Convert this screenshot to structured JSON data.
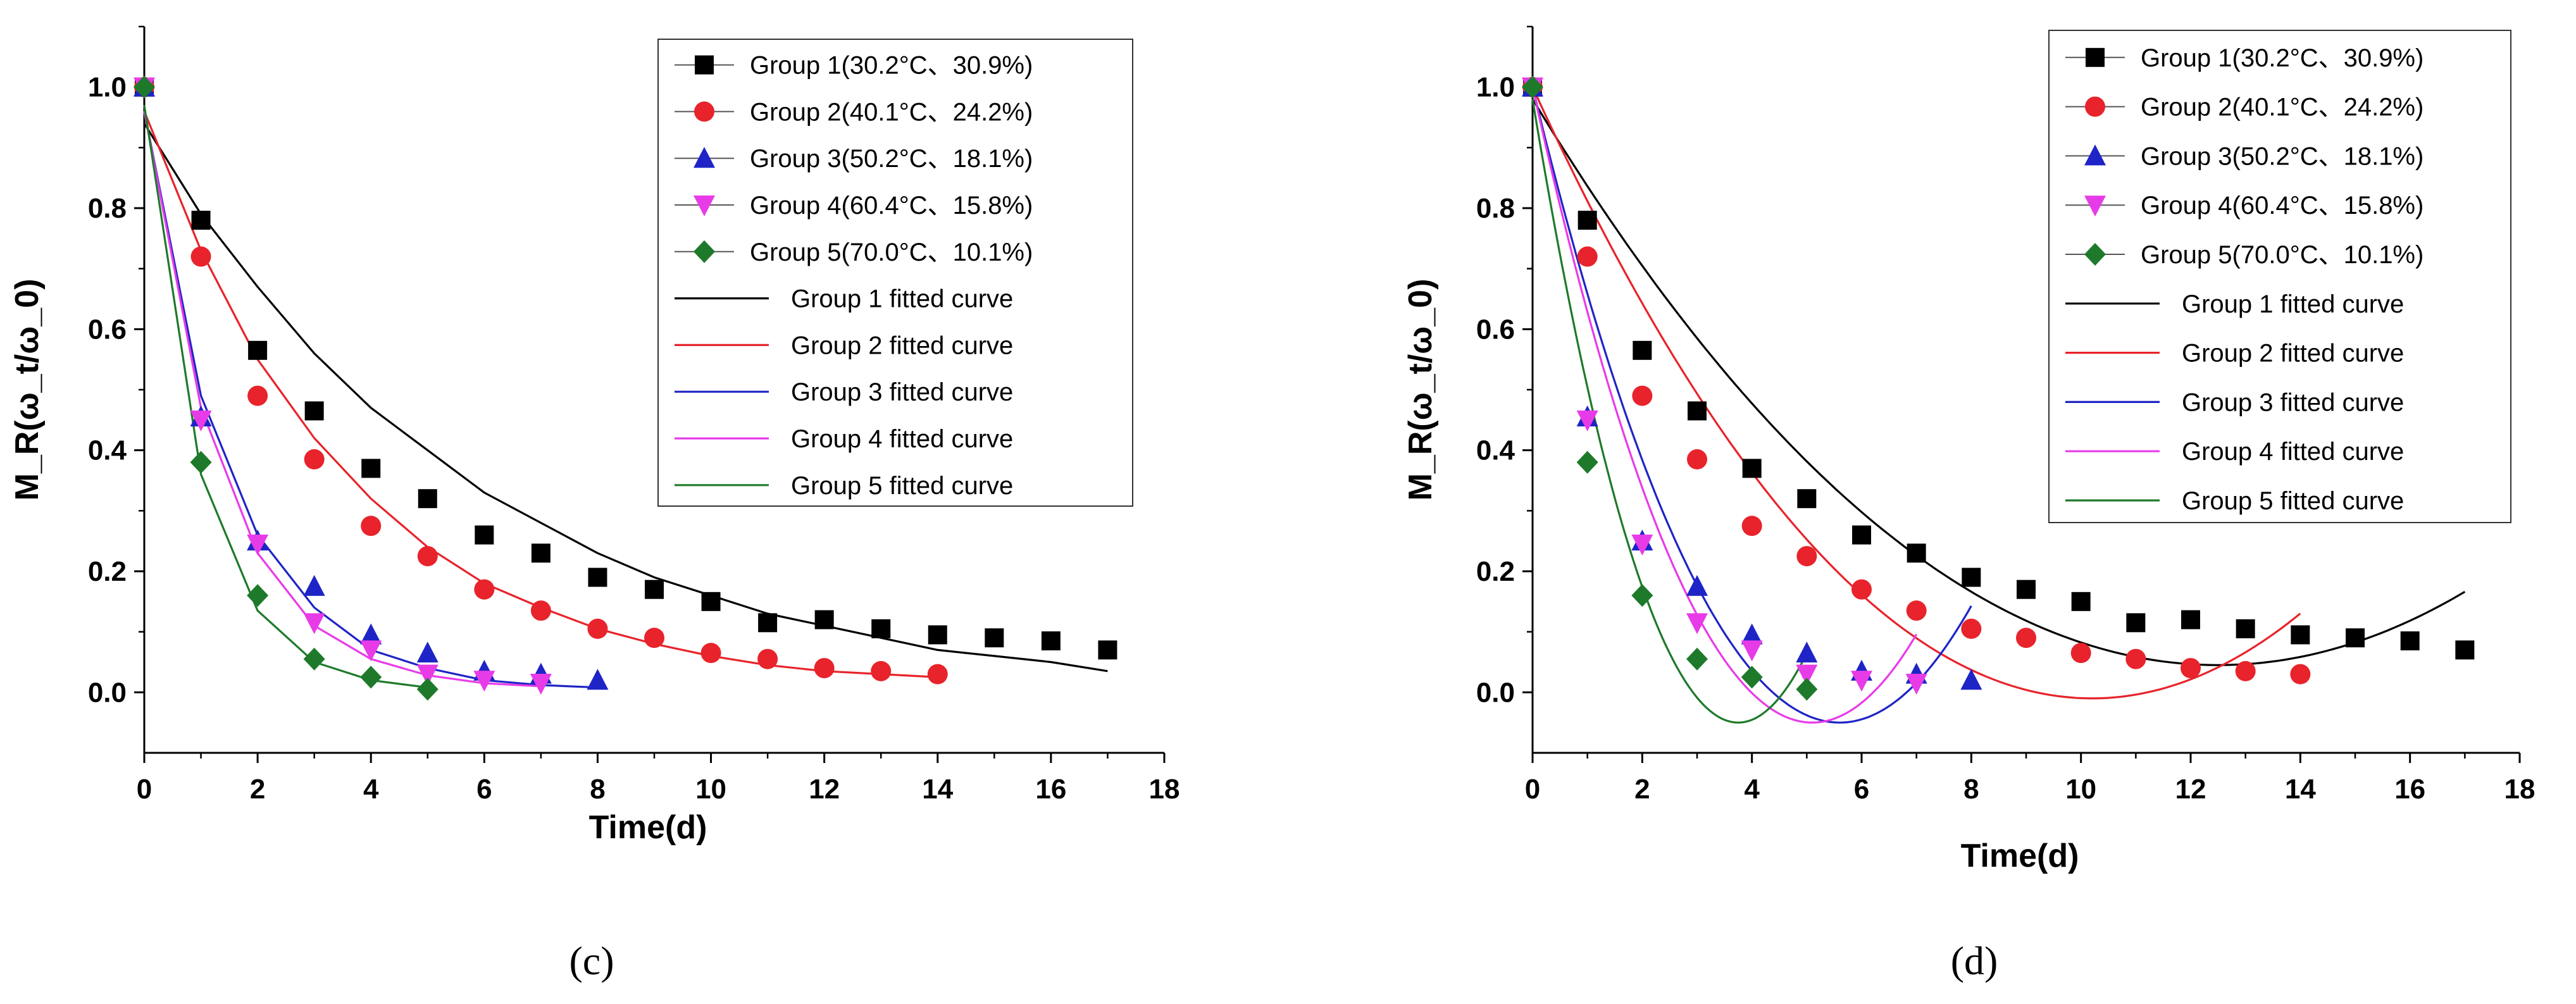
{
  "chart_data": [
    {
      "panel": "c",
      "type": "scatter",
      "xlabel": "Time(d)",
      "ylabel": "M_R(ω_t/ω_0)",
      "xlim": [
        0,
        18
      ],
      "ylim": [
        -0.1,
        1.1
      ],
      "xticks": [
        0,
        2,
        4,
        6,
        8,
        10,
        12,
        14,
        16,
        18
      ],
      "yticks": [
        0.0,
        0.2,
        0.4,
        0.6,
        0.8,
        1.0
      ],
      "legend_position": "top-right",
      "series": [
        {
          "name": "Group 1(30.2°C、30.9%)",
          "marker": "square",
          "color": "#000000",
          "x": [
            0,
            1,
            2,
            3,
            4,
            5,
            6,
            7,
            8,
            9,
            10,
            11,
            12,
            13,
            14,
            15,
            16,
            17
          ],
          "y": [
            1.0,
            0.78,
            0.565,
            0.465,
            0.37,
            0.32,
            0.26,
            0.23,
            0.19,
            0.17,
            0.15,
            0.115,
            0.12,
            0.105,
            0.095,
            0.09,
            0.085,
            0.07
          ]
        },
        {
          "name": "Group 2(40.1°C、24.2%)",
          "marker": "circle",
          "color": "#e8232b",
          "x": [
            0,
            1,
            2,
            3,
            4,
            5,
            6,
            7,
            8,
            9,
            10,
            11,
            12,
            13,
            14
          ],
          "y": [
            1.0,
            0.72,
            0.49,
            0.385,
            0.275,
            0.225,
            0.17,
            0.135,
            0.105,
            0.09,
            0.065,
            0.055,
            0.04,
            0.035,
            0.03
          ]
        },
        {
          "name": "Group 3(50.2°C、18.1%)",
          "marker": "triangle-up",
          "color": "#1f24c6",
          "x": [
            0,
            1,
            2,
            3,
            4,
            5,
            6,
            7,
            8
          ],
          "y": [
            1.0,
            0.455,
            0.25,
            0.175,
            0.095,
            0.065,
            0.035,
            0.03,
            0.02
          ]
        },
        {
          "name": "Group 4(60.4°C、15.8%)",
          "marker": "triangle-down",
          "color": "#e83be8",
          "x": [
            0,
            1,
            2,
            3,
            4,
            5,
            6,
            7
          ],
          "y": [
            1.0,
            0.45,
            0.245,
            0.115,
            0.07,
            0.03,
            0.02,
            0.015
          ]
        },
        {
          "name": "Group 5(70.0°C、10.1%)",
          "marker": "diamond",
          "color": "#1e7a2a",
          "x": [
            0,
            1,
            2,
            3,
            4,
            5
          ],
          "y": [
            1.0,
            0.38,
            0.16,
            0.055,
            0.025,
            0.005
          ]
        }
      ],
      "fitted_curves": [
        {
          "name": "Group 1 fitted curve",
          "color": "#000000",
          "model": "exp",
          "x_end": 17,
          "x": [
            0,
            1,
            2,
            3,
            4,
            5,
            6,
            7,
            8,
            9,
            10,
            11,
            12,
            13,
            14,
            15,
            16,
            17
          ],
          "y": [
            0.94,
            0.79,
            0.67,
            0.56,
            0.47,
            0.4,
            0.33,
            0.28,
            0.23,
            0.19,
            0.16,
            0.13,
            0.11,
            0.09,
            0.07,
            0.06,
            0.05,
            0.035
          ]
        },
        {
          "name": "Group 2 fitted curve",
          "color": "#e8232b",
          "model": "exp",
          "x_end": 14,
          "x": [
            0,
            1,
            2,
            3,
            4,
            5,
            6,
            7,
            8,
            9,
            10,
            11,
            12,
            13,
            14
          ],
          "y": [
            0.96,
            0.73,
            0.55,
            0.42,
            0.32,
            0.24,
            0.18,
            0.14,
            0.105,
            0.08,
            0.06,
            0.045,
            0.035,
            0.03,
            0.025
          ]
        },
        {
          "name": "Group 3 fitted curve",
          "color": "#1f24c6",
          "model": "exp",
          "x_end": 8,
          "x": [
            0,
            1,
            2,
            3,
            4,
            5,
            6,
            7,
            8
          ],
          "y": [
            0.96,
            0.49,
            0.26,
            0.14,
            0.07,
            0.04,
            0.02,
            0.012,
            0.008
          ]
        },
        {
          "name": "Group 4 fitted curve",
          "color": "#e83be8",
          "model": "exp",
          "x_end": 7,
          "x": [
            0,
            1,
            2,
            3,
            4,
            5,
            6,
            7
          ],
          "y": [
            0.96,
            0.47,
            0.23,
            0.11,
            0.055,
            0.028,
            0.015,
            0.01
          ]
        },
        {
          "name": "Group 5 fitted curve",
          "color": "#1e7a2a",
          "model": "exp",
          "x_end": 5,
          "x": [
            0,
            1,
            2,
            3,
            4,
            5
          ],
          "y": [
            0.97,
            0.36,
            0.135,
            0.05,
            0.02,
            0.008
          ]
        }
      ]
    },
    {
      "panel": "d",
      "type": "scatter",
      "xlabel": "Time(d)",
      "ylabel": "M_R(ω_t/ω_0)",
      "xlim": [
        0,
        18
      ],
      "ylim": [
        -0.1,
        1.1
      ],
      "xticks": [
        0,
        2,
        4,
        6,
        8,
        10,
        12,
        14,
        16,
        18
      ],
      "yticks": [
        0.0,
        0.2,
        0.4,
        0.6,
        0.8,
        1.0
      ],
      "legend_position": "top-right",
      "series": [
        {
          "name": "Group 1(30.2°C、30.9%)",
          "marker": "square",
          "color": "#000000",
          "x": [
            0,
            1,
            2,
            3,
            4,
            5,
            6,
            7,
            8,
            9,
            10,
            11,
            12,
            13,
            14,
            15,
            16,
            17
          ],
          "y": [
            1.0,
            0.78,
            0.565,
            0.465,
            0.37,
            0.32,
            0.26,
            0.23,
            0.19,
            0.17,
            0.15,
            0.115,
            0.12,
            0.105,
            0.095,
            0.09,
            0.085,
            0.07
          ]
        },
        {
          "name": "Group 2(40.1°C、24.2%)",
          "marker": "circle",
          "color": "#e8232b",
          "x": [
            0,
            1,
            2,
            3,
            4,
            5,
            6,
            7,
            8,
            9,
            10,
            11,
            12,
            13,
            14
          ],
          "y": [
            1.0,
            0.72,
            0.49,
            0.385,
            0.275,
            0.225,
            0.17,
            0.135,
            0.105,
            0.09,
            0.065,
            0.055,
            0.04,
            0.035,
            0.03
          ]
        },
        {
          "name": "Group 3(50.2°C、18.1%)",
          "marker": "triangle-up",
          "color": "#1f24c6",
          "x": [
            0,
            1,
            2,
            3,
            4,
            5,
            6,
            7,
            8
          ],
          "y": [
            1.0,
            0.455,
            0.25,
            0.175,
            0.095,
            0.065,
            0.035,
            0.03,
            0.02
          ]
        },
        {
          "name": "Group 4(60.4°C、15.8%)",
          "marker": "triangle-down",
          "color": "#e83be8",
          "x": [
            0,
            1,
            2,
            3,
            4,
            5,
            6,
            7
          ],
          "y": [
            1.0,
            0.45,
            0.245,
            0.115,
            0.07,
            0.03,
            0.02,
            0.015
          ]
        },
        {
          "name": "Group 5(70.0°C、10.1%)",
          "marker": "diamond",
          "color": "#1e7a2a",
          "x": [
            0,
            1,
            2,
            3,
            4,
            5
          ],
          "y": [
            1.0,
            0.38,
            0.16,
            0.055,
            0.025,
            0.005
          ]
        }
      ],
      "fitted_curves": [
        {
          "name": "Group 1 fitted curve",
          "color": "#000000",
          "model": "quadratic",
          "vertex_x": 12.5,
          "vertex_y": 0.045,
          "x_start": 0,
          "x_end": 17,
          "y_at_0": 0.98
        },
        {
          "name": "Group 2 fitted curve",
          "color": "#e8232b",
          "model": "quadratic",
          "vertex_x": 10.2,
          "vertex_y": -0.01,
          "x_start": 0,
          "x_end": 14,
          "y_at_0": 1.0
        },
        {
          "name": "Group 3 fitted curve",
          "color": "#1f24c6",
          "model": "quadratic",
          "vertex_x": 5.6,
          "vertex_y": -0.05,
          "x_start": 0,
          "x_end": 8,
          "y_at_0": 1.0
        },
        {
          "name": "Group 4 fitted curve",
          "color": "#e83be8",
          "model": "quadratic",
          "vertex_x": 5.1,
          "vertex_y": -0.05,
          "x_start": 0,
          "x_end": 7,
          "y_at_0": 1.0
        },
        {
          "name": "Group 5 fitted curve",
          "color": "#1e7a2a",
          "model": "quadratic",
          "vertex_x": 3.75,
          "vertex_y": -0.05,
          "x_start": 0,
          "x_end": 5,
          "y_at_0": 0.98
        }
      ]
    }
  ],
  "captions": {
    "c": "(c)",
    "d": "(d)"
  }
}
